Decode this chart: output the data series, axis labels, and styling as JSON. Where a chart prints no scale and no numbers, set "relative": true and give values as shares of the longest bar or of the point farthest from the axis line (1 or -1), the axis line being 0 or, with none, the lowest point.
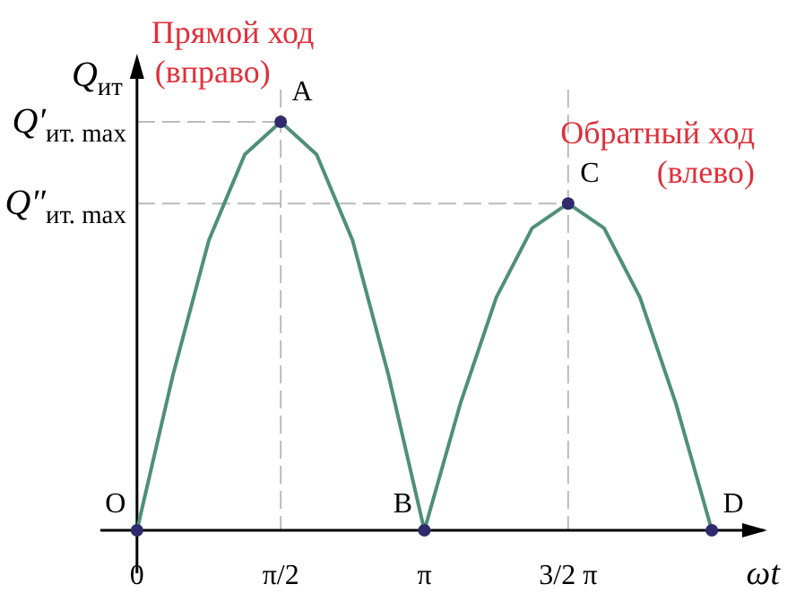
{
  "chart_data": {
    "type": "line",
    "relative": true,
    "xlabel": "ωt",
    "ylabel": "Q$_{ит}$",
    "xlim": [
      -0.4,
      6.85
    ],
    "xticks": [
      {
        "value": 0,
        "label": "0"
      },
      {
        "value": 1.5708,
        "label": "π/2"
      },
      {
        "value": 3.1416,
        "label": "π"
      },
      {
        "value": 4.7124,
        "label": "3/2 π"
      }
    ],
    "series": [
      {
        "color": "#4f8f7a",
        "x": [
          0,
          0.3927,
          0.7854,
          1.1781,
          1.5708,
          1.9635,
          2.3562,
          2.7489,
          3.1416,
          3.5343,
          3.927,
          4.3197,
          4.7124,
          5.1051,
          5.4978,
          5.8905,
          6.2832
        ],
        "values": [
          0,
          0.38,
          0.71,
          0.92,
          1,
          0.92,
          0.71,
          0.38,
          0,
          0.31,
          0.57,
          0.74,
          0.8,
          0.74,
          0.57,
          0.31,
          0
        ],
        "marker": "none",
        "line_style": "solid"
      },
      {
        "type": "scatter",
        "color": "#2e2a6b",
        "x": [
          0,
          1.5708,
          3.1416,
          4.7124,
          6.2832
        ],
        "values": [
          0,
          1,
          0,
          0.8,
          0
        ],
        "marker": "circle"
      }
    ],
    "ref_lines": [
      {
        "axis": "y",
        "value": 1,
        "label": "Q′$_{ит. max}$",
        "color": "#bbbbbb",
        "line_style": "dashed"
      },
      {
        "axis": "y",
        "value": 0.8,
        "label": "Q″$_{ит. max}$",
        "color": "#bbbbbb",
        "line_style": "dashed"
      },
      {
        "axis": "x",
        "value": 1.5708,
        "label": null,
        "color": "#bbbbbb",
        "line_style": "dashed"
      },
      {
        "axis": "x",
        "value": 4.7124,
        "label": null,
        "color": "#bbbbbb",
        "line_style": "dashed"
      }
    ],
    "annotations": [
      "Прямой ход (вправо)",
      "Обратный ход (влево)",
      {
        "text": "O",
        "x": 0,
        "y": 0
      },
      {
        "text": "A",
        "x": 1.5708,
        "y": 1
      },
      {
        "text": "B",
        "x": 3.1416,
        "y": 0
      },
      {
        "text": "C",
        "x": 4.7124,
        "y": 0.8
      },
      {
        "text": "D",
        "x": 6.2832,
        "y": 0
      }
    ],
    "grid": false
  }
}
